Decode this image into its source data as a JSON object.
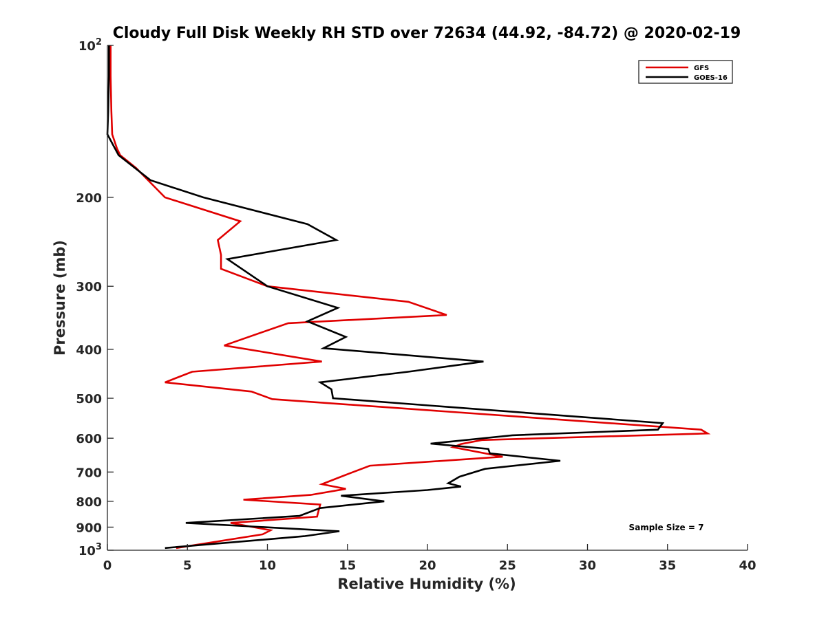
{
  "chart_data": {
    "type": "line",
    "title": "Cloudy Full Disk Weekly RH STD over 72634 (44.92, -84.72) @ 2020-02-19",
    "xlabel": "Relative Humidity (%)",
    "ylabel": "Pressure (mb)",
    "xlim": [
      0,
      40
    ],
    "ylim": [
      100,
      1000
    ],
    "y_scale": "log",
    "y_reversed": true,
    "x_ticks": [
      0,
      5,
      10,
      15,
      20,
      25,
      30,
      35,
      40
    ],
    "y_ticks": [
      {
        "value": 100,
        "label": "10",
        "sup": "2"
      },
      {
        "value": 200,
        "label": "200",
        "sup": ""
      },
      {
        "value": 300,
        "label": "300",
        "sup": ""
      },
      {
        "value": 400,
        "label": "400",
        "sup": ""
      },
      {
        "value": 500,
        "label": "500",
        "sup": ""
      },
      {
        "value": 600,
        "label": "600",
        "sup": ""
      },
      {
        "value": 700,
        "label": "700",
        "sup": ""
      },
      {
        "value": 800,
        "label": "800",
        "sup": ""
      },
      {
        "value": 900,
        "label": "900",
        "sup": ""
      },
      {
        "value": 1000,
        "label": "10",
        "sup": "3"
      }
    ],
    "grid": false,
    "legend_position": "top-right",
    "annotation": "Sample Size = 7",
    "series": [
      {
        "name": "GFS",
        "color": "#e00000",
        "points": [
          [
            0.2,
            100
          ],
          [
            0.2,
            115
          ],
          [
            0.25,
            135
          ],
          [
            0.3,
            150
          ],
          [
            0.6,
            160
          ],
          [
            0.8,
            165
          ],
          [
            1.8,
            175
          ],
          [
            3.6,
            200
          ],
          [
            8.3,
            223
          ],
          [
            6.9,
            243
          ],
          [
            7.1,
            260
          ],
          [
            7.1,
            277
          ],
          [
            10.0,
            300
          ],
          [
            18.8,
            322
          ],
          [
            21.2,
            342
          ],
          [
            11.3,
            355
          ],
          [
            7.3,
            393
          ],
          [
            13.4,
            423
          ],
          [
            5.3,
            443
          ],
          [
            3.6,
            465
          ],
          [
            9.0,
            485
          ],
          [
            10.3,
            502
          ],
          [
            37.1,
            577
          ],
          [
            37.5,
            587
          ],
          [
            23.4,
            605
          ],
          [
            22.1,
            616
          ],
          [
            21.6,
            625
          ],
          [
            24.7,
            653
          ],
          [
            16.4,
            680
          ],
          [
            14.6,
            715
          ],
          [
            13.4,
            740
          ],
          [
            14.9,
            756
          ],
          [
            12.7,
            777
          ],
          [
            8.5,
            794
          ],
          [
            13.3,
            812
          ],
          [
            13.1,
            858
          ],
          [
            7.7,
            883
          ],
          [
            10.2,
            913
          ],
          [
            9.7,
            930
          ],
          [
            4.3,
            990
          ]
        ]
      },
      {
        "name": "GOES-16",
        "color": "#000000",
        "points": [
          [
            0.1,
            100
          ],
          [
            0.1,
            115
          ],
          [
            0.05,
            135
          ],
          [
            0.0,
            150
          ],
          [
            0.7,
            165
          ],
          [
            2.7,
            185
          ],
          [
            6.0,
            200
          ],
          [
            12.5,
            226
          ],
          [
            14.3,
            243
          ],
          [
            7.5,
            265
          ],
          [
            10.0,
            300
          ],
          [
            14.4,
            331
          ],
          [
            12.5,
            352
          ],
          [
            14.9,
            378
          ],
          [
            13.5,
            398
          ],
          [
            23.5,
            423
          ],
          [
            18.8,
            443
          ],
          [
            13.3,
            465
          ],
          [
            14.0,
            480
          ],
          [
            14.1,
            500
          ],
          [
            34.7,
            560
          ],
          [
            34.4,
            577
          ],
          [
            25.3,
            592
          ],
          [
            20.2,
            615
          ],
          [
            23.8,
            630
          ],
          [
            23.9,
            643
          ],
          [
            28.3,
            665
          ],
          [
            23.6,
            690
          ],
          [
            22.0,
            715
          ],
          [
            21.3,
            737
          ],
          [
            22.1,
            748
          ],
          [
            20.0,
            760
          ],
          [
            14.6,
            780
          ],
          [
            17.3,
            800
          ],
          [
            13.3,
            825
          ],
          [
            12.0,
            855
          ],
          [
            4.9,
            883
          ],
          [
            14.5,
            917
          ],
          [
            12.3,
            938
          ],
          [
            3.6,
            990
          ]
        ]
      }
    ]
  }
}
